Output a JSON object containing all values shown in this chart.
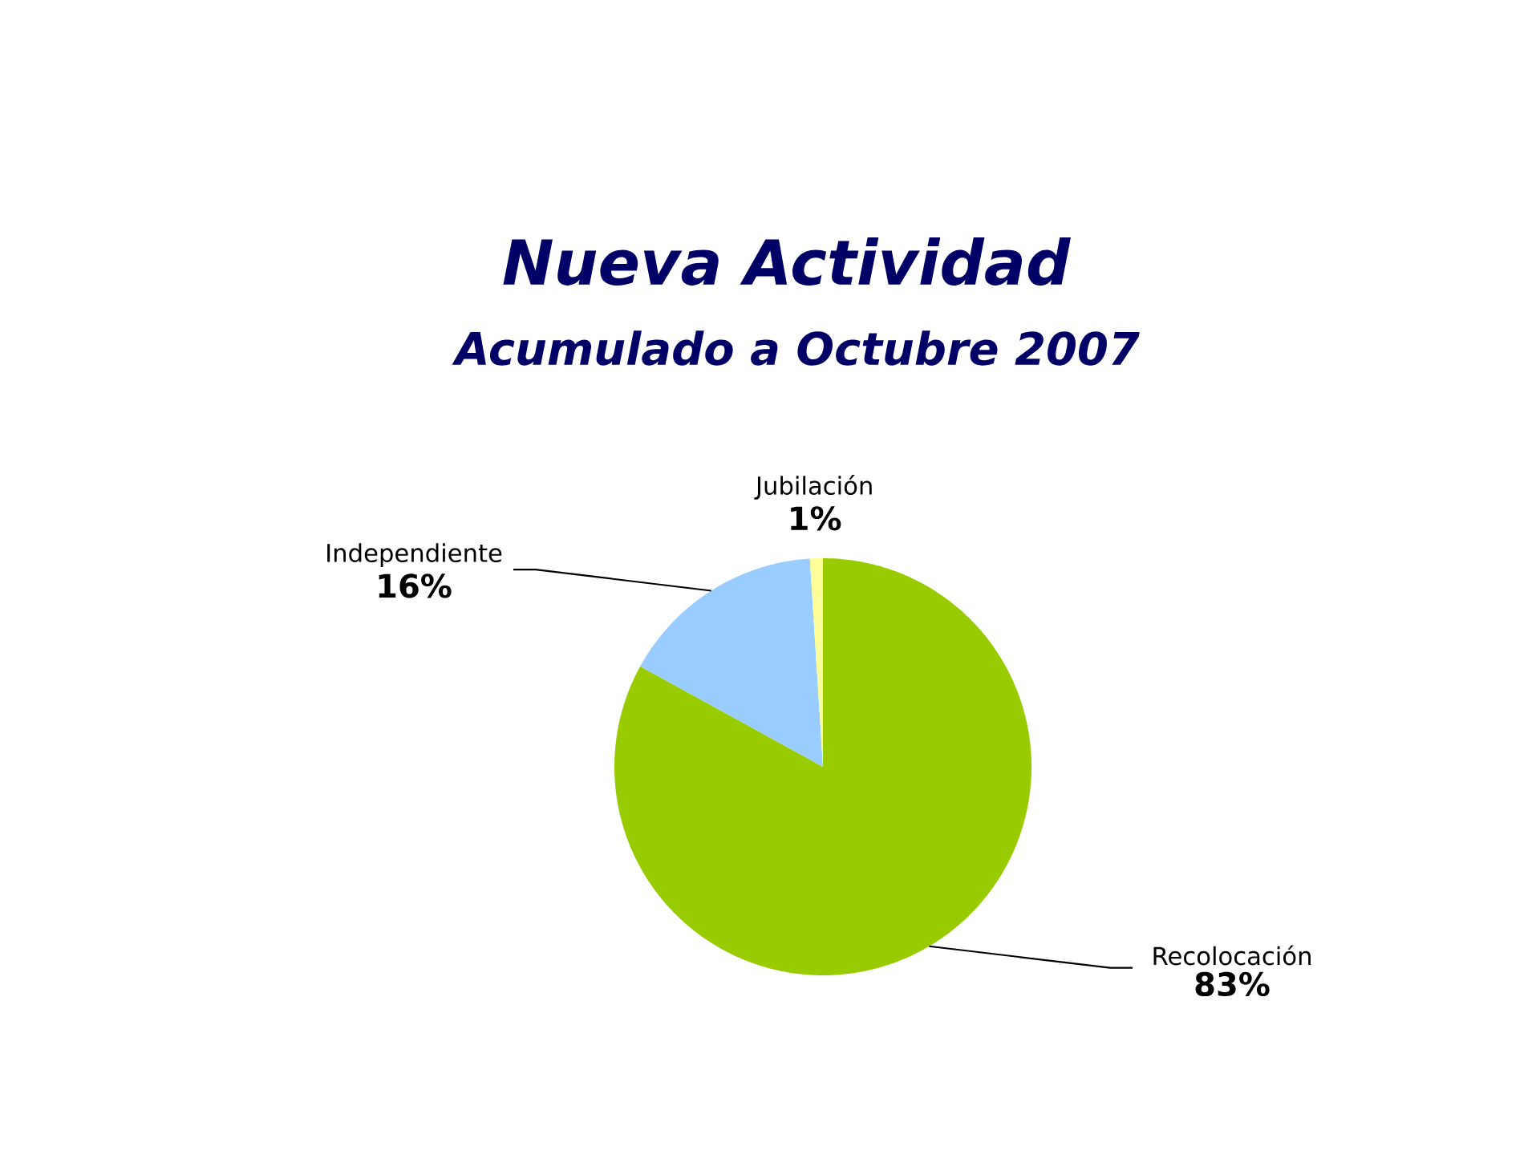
{
  "chart_data": {
    "type": "pie",
    "title": "Nueva Actividad",
    "subtitle": "Acumulado a Octubre 2007",
    "categories": [
      "Recolocación",
      "Independiente",
      "Jubilación"
    ],
    "values": [
      83,
      16,
      1
    ],
    "colors": [
      "#99cc00",
      "#99ccff",
      "#ffff99"
    ],
    "value_labels": [
      "83%",
      "16%",
      "1%"
    ]
  }
}
